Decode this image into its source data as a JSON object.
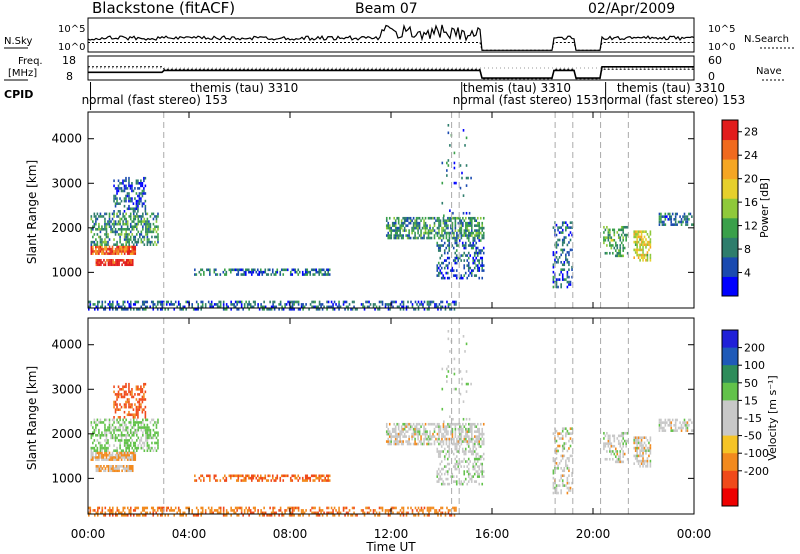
{
  "header": {
    "station": "Blackstone (fitACF)",
    "beam": "Beam 07",
    "date": "02/Apr/2009"
  },
  "top_panels": {
    "nsky_label": "N.Sky",
    "nsearch_label": "N.Search",
    "noise_ticks": [
      "10^5",
      "10^0"
    ],
    "freq_label_1": "Freq.",
    "freq_label_2": "[MHz]",
    "freq_ticks": [
      "18",
      "8"
    ],
    "nave_label": "Nave",
    "nave_ticks": [
      "60",
      "0"
    ],
    "cpid_label": "CPID"
  },
  "cpid_labels": [
    {
      "text": "themis (tau) 3310",
      "row": "upper",
      "hour": 4.6
    },
    {
      "text": "normal (fast stereo) 153",
      "row": "lower",
      "hour": 0.3
    },
    {
      "text": "themis (tau) 3310",
      "row": "upper",
      "hour": 15.4
    },
    {
      "text": "normal (fast stereo) 153",
      "row": "lower",
      "hour": 15.0
    },
    {
      "text": "themis (tau) 3310",
      "row": "upper",
      "hour": 21.5
    },
    {
      "text": "normal (fast stereo) 153",
      "row": "lower",
      "hour": 20.8
    }
  ],
  "colors": {
    "power_scale": [
      "#0000ff",
      "#1a4ab0",
      "#2e7d6c",
      "#3aa04a",
      "#8fc93a",
      "#e6d02c",
      "#f5a623",
      "#f06a1e",
      "#e21d1d"
    ],
    "velocity_scale": [
      "#ee0000",
      "#f04a1a",
      "#f28a1e",
      "#f5c426",
      "#c8c8c8",
      "#c8c8c8",
      "#62c24a",
      "#2e8c5a",
      "#1f5ab8",
      "#2020d8"
    ]
  },
  "chart_data": [
    {
      "type": "heatmap",
      "title": "Power",
      "ylabel": "Slant Range [km]",
      "yticks": [
        "1000",
        "2000",
        "3000",
        "4000"
      ],
      "ylim": [
        200,
        4600
      ],
      "xlim_hours": [
        0,
        24
      ],
      "colorbar_label": "Power [dB]",
      "colorbar_ticks": [
        "28",
        "24",
        "20",
        "16",
        "12",
        "8",
        "4"
      ],
      "colorbar_range": [
        0,
        30
      ]
    },
    {
      "type": "heatmap",
      "title": "Velocity",
      "ylabel": "Slant Range [km]",
      "yticks": [
        "1000",
        "2000",
        "3000",
        "4000"
      ],
      "ylim": [
        200,
        4600
      ],
      "xlabel": "Time UT",
      "xticks": [
        "00:00",
        "04:00",
        "08:00",
        "12:00",
        "16:00",
        "20:00",
        "00:00"
      ],
      "xlim_hours": [
        0,
        24
      ],
      "colorbar_label": "Velocity [m s⁻¹]",
      "colorbar_ticks": [
        "200",
        "100",
        "50",
        "15",
        "-15",
        "-50",
        "-100",
        "-200"
      ]
    }
  ],
  "scatter_blobs": [
    {
      "h0": 0.1,
      "h1": 1.9,
      "r0": 1450,
      "r1": 1650,
      "pow": 25,
      "vel": -15,
      "d": 0.9
    },
    {
      "h0": 0.3,
      "h1": 1.8,
      "r0": 1200,
      "r1": 1350,
      "pow": 28,
      "vel": -15,
      "d": 0.8
    },
    {
      "h0": 0.1,
      "h1": 2.8,
      "r0": 1650,
      "r1": 2400,
      "pow": 10,
      "vel": 20,
      "d": 0.55
    },
    {
      "h0": 1.0,
      "h1": 2.3,
      "r0": 2400,
      "r1": 3200,
      "pow": 6,
      "vel": -60,
      "d": 0.4
    },
    {
      "h0": 4.2,
      "h1": 9.6,
      "r0": 980,
      "r1": 1140,
      "pow": 7,
      "vel": -50,
      "d": 0.55
    },
    {
      "h0": 0.0,
      "h1": 14.6,
      "r0": 200,
      "r1": 420,
      "pow": 6,
      "vel": -40,
      "d": 0.45
    },
    {
      "h0": 11.8,
      "h1": 15.7,
      "r0": 1800,
      "r1": 2300,
      "pow": 10,
      "vel": 0,
      "d": 0.6
    },
    {
      "h0": 13.8,
      "h1": 15.7,
      "r0": 900,
      "r1": 1800,
      "pow": 6,
      "vel": 5,
      "d": 0.35
    },
    {
      "h0": 18.4,
      "h1": 19.2,
      "r0": 700,
      "r1": 2200,
      "pow": 6,
      "vel": 0,
      "d": 0.35
    },
    {
      "h0": 20.4,
      "h1": 21.4,
      "r0": 1400,
      "r1": 2100,
      "pow": 12,
      "vel": 0,
      "d": 0.45
    },
    {
      "h0": 21.6,
      "h1": 22.3,
      "r0": 1300,
      "r1": 2000,
      "pow": 18,
      "vel": 0,
      "d": 0.6
    },
    {
      "h0": 22.6,
      "h1": 24.0,
      "r0": 2100,
      "r1": 2400,
      "pow": 8,
      "vel": 0,
      "d": 0.55
    },
    {
      "h0": 14.0,
      "h1": 15.2,
      "r0": 2300,
      "r1": 4500,
      "pow": 6,
      "vel": 5,
      "d": 0.05
    }
  ]
}
